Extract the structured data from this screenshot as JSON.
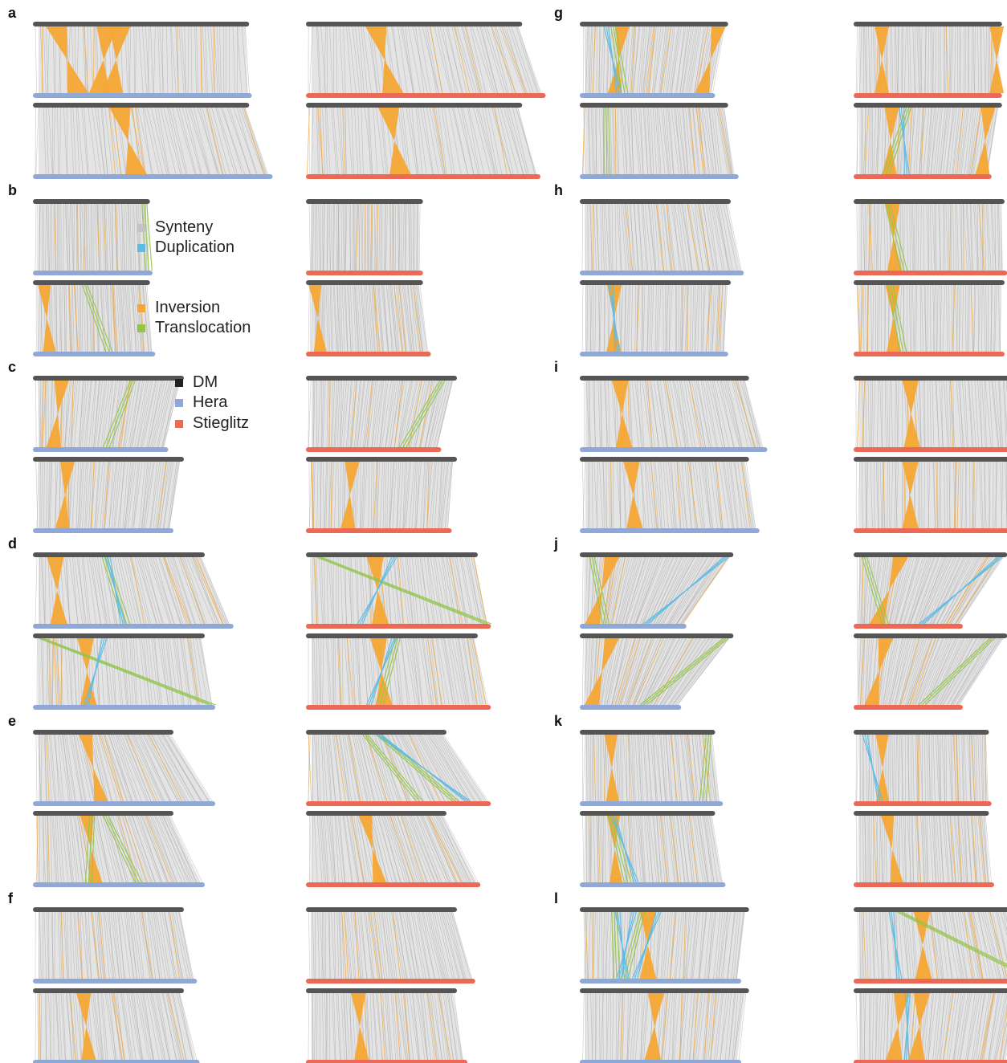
{
  "colors": {
    "reference": "#555555",
    "hera": "#8fa8d6",
    "stieglitz": "#ec6a55",
    "synteny": "#c3c3c3",
    "duplication": "#5bbbe6",
    "inversion": "#f6a635",
    "translocation": "#93c54b"
  },
  "legend_variants": [
    {
      "label": "Synteny",
      "color": "#c3c3c3"
    },
    {
      "label": "Duplication",
      "color": "#5bbbe6"
    },
    {
      "label": "Inversion",
      "color": "#f6a635"
    },
    {
      "label": "Translocation",
      "color": "#93c54b"
    }
  ],
  "legend_genomes": [
    {
      "label": "DM",
      "color": "#222222"
    },
    {
      "label": "Hera",
      "color": "#8fa8d6"
    },
    {
      "label": "Stieglitz",
      "color": "#ec6a55"
    }
  ],
  "panels": [
    {
      "label": "a",
      "plots": [
        {
          "genome": "hera",
          "topLen": 0.81,
          "botLen": 0.82,
          "inv": [
            [
              0.1,
              0.2
            ],
            [
              0.34,
              0.3
            ],
            [
              0.4,
              0.36
            ]
          ],
          "tl": [],
          "dup": []
        },
        {
          "genome": "stieglitz",
          "topLen": 0.81,
          "botLen": 0.9,
          "inv": [
            [
              0.32,
              0.36
            ]
          ],
          "tl": [],
          "dup": []
        },
        {
          "genome": "hera",
          "topLen": 0.81,
          "botLen": 0.9,
          "inv": [
            [
              0.4,
              0.43
            ]
          ],
          "tl": [],
          "dup": []
        },
        {
          "genome": "stieglitz",
          "topLen": 0.81,
          "botLen": 0.88,
          "inv": [
            [
              0.38,
              0.4
            ]
          ],
          "tl": [],
          "dup": []
        }
      ]
    },
    {
      "label": "b",
      "plots": [
        {
          "genome": "hera",
          "topLen": 0.43,
          "botLen": 0.44,
          "inv": [],
          "tl": [
            [
              0.95,
              0.96
            ]
          ],
          "dup": []
        },
        {
          "genome": "stieglitz",
          "topLen": 0.43,
          "botLen": 0.43,
          "inv": [],
          "tl": [],
          "dup": []
        },
        {
          "genome": "hera",
          "topLen": 0.43,
          "botLen": 0.45,
          "inv": [
            [
              0.08,
              0.12
            ]
          ],
          "tl": [
            [
              0.42,
              0.6
            ]
          ],
          "dup": []
        },
        {
          "genome": "stieglitz",
          "topLen": 0.43,
          "botLen": 0.46,
          "inv": [
            [
              0.06,
              0.1
            ]
          ],
          "tl": [],
          "dup": []
        }
      ]
    },
    {
      "label": "c",
      "plots": [
        {
          "genome": "hera",
          "topLen": 0.56,
          "botLen": 0.5,
          "inv": [
            [
              0.18,
              0.14
            ]
          ],
          "tl": [
            [
              0.65,
              0.52
            ]
          ],
          "dup": []
        },
        {
          "genome": "stieglitz",
          "topLen": 0.56,
          "botLen": 0.5,
          "inv": [],
          "tl": [
            [
              0.9,
              0.7
            ]
          ],
          "dup": []
        },
        {
          "genome": "hera",
          "topLen": 0.56,
          "botLen": 0.52,
          "inv": [
            [
              0.22,
              0.2
            ]
          ],
          "tl": [],
          "dup": []
        },
        {
          "genome": "stieglitz",
          "topLen": 0.56,
          "botLen": 0.54,
          "inv": [
            [
              0.3,
              0.28
            ]
          ],
          "tl": [],
          "dup": []
        }
      ]
    },
    {
      "label": "d",
      "plots": [
        {
          "genome": "hera",
          "topLen": 0.64,
          "botLen": 0.75,
          "inv": [
            [
              0.12,
              0.12
            ]
          ],
          "tl": [
            [
              0.4,
              0.45
            ]
          ],
          "dup": [
            [
              0.42,
              0.46
            ]
          ]
        },
        {
          "genome": "stieglitz",
          "topLen": 0.64,
          "botLen": 0.69,
          "inv": [
            [
              0.4,
              0.4
            ]
          ],
          "tl": [
            [
              0.05,
              0.98
            ]
          ],
          "dup": [
            [
              0.5,
              0.3
            ]
          ]
        },
        {
          "genome": "hera",
          "topLen": 0.64,
          "botLen": 0.68,
          "inv": [
            [
              0.3,
              0.3
            ]
          ],
          "tl": [
            [
              0.02,
              0.98
            ]
          ],
          "dup": [
            [
              0.4,
              0.3
            ]
          ]
        },
        {
          "genome": "stieglitz",
          "topLen": 0.64,
          "botLen": 0.69,
          "inv": [
            [
              0.42,
              0.42
            ]
          ],
          "tl": [
            [
              0.52,
              0.38
            ]
          ],
          "dup": [
            [
              0.5,
              0.35
            ]
          ]
        }
      ]
    },
    {
      "label": "e",
      "plots": [
        {
          "genome": "hera",
          "topLen": 0.52,
          "botLen": 0.68,
          "inv": [
            [
              0.37,
              0.37
            ]
          ],
          "tl": [],
          "dup": []
        },
        {
          "genome": "stieglitz",
          "topLen": 0.52,
          "botLen": 0.69,
          "inv": [],
          "tl": [
            [
              0.4,
              0.6
            ],
            [
              0.5,
              0.8
            ]
          ],
          "dup": [
            [
              0.5,
              0.9
            ]
          ]
        },
        {
          "genome": "hera",
          "topLen": 0.52,
          "botLen": 0.64,
          "inv": [
            [
              0.38,
              0.36
            ]
          ],
          "tl": [
            [
              0.4,
              0.3
            ],
            [
              0.5,
              0.6
            ]
          ],
          "dup": []
        },
        {
          "genome": "stieglitz",
          "topLen": 0.52,
          "botLen": 0.65,
          "inv": [
            [
              0.42,
              0.42
            ]
          ],
          "tl": [],
          "dup": []
        }
      ]
    },
    {
      "label": "f",
      "plots": [
        {
          "genome": "hera",
          "topLen": 0.56,
          "botLen": 0.61,
          "inv": [],
          "tl": [],
          "dup": []
        },
        {
          "genome": "stieglitz",
          "topLen": 0.56,
          "botLen": 0.63,
          "inv": [],
          "tl": [],
          "dup": []
        },
        {
          "genome": "hera",
          "topLen": 0.56,
          "botLen": 0.62,
          "inv": [
            [
              0.33,
              0.33
            ]
          ],
          "tl": [],
          "dup": []
        },
        {
          "genome": "stieglitz",
          "topLen": 0.56,
          "botLen": 0.6,
          "inv": [
            [
              0.34,
              0.34
            ]
          ],
          "tl": [],
          "dup": []
        }
      ]
    },
    {
      "label": "g",
      "plots": [
        {
          "genome": "hera",
          "topLen": 0.55,
          "botLen": 0.5,
          "inv": [
            [
              0.28,
              0.25
            ],
            [
              0.95,
              0.92
            ]
          ],
          "tl": [
            [
              0.2,
              0.3
            ]
          ],
          "dup": [
            [
              0.15,
              0.3
            ]
          ]
        },
        {
          "genome": "stieglitz",
          "topLen": 0.55,
          "botLen": 0.55,
          "inv": [
            [
              0.18,
              0.18
            ],
            [
              0.98,
              0.98
            ]
          ],
          "tl": [],
          "dup": []
        },
        {
          "genome": "hera",
          "topLen": 0.55,
          "botLen": 0.59,
          "inv": [],
          "tl": [
            [
              0.15,
              0.14
            ]
          ],
          "dup": []
        },
        {
          "genome": "stieglitz",
          "topLen": 0.55,
          "botLen": 0.51,
          "inv": [
            [
              0.25,
              0.25
            ],
            [
              0.92,
              0.95
            ]
          ],
          "tl": [
            [
              0.35,
              0.2
            ]
          ],
          "dup": [
            [
              0.3,
              0.4
            ]
          ]
        }
      ]
    },
    {
      "label": "h",
      "plots": [
        {
          "genome": "hera",
          "topLen": 0.56,
          "botLen": 0.61,
          "inv": [],
          "tl": [],
          "dup": []
        },
        {
          "genome": "stieglitz",
          "topLen": 0.56,
          "botLen": 0.57,
          "inv": [
            [
              0.25,
              0.26
            ]
          ],
          "tl": [
            [
              0.2,
              0.3
            ]
          ],
          "dup": []
        },
        {
          "genome": "hera",
          "topLen": 0.56,
          "botLen": 0.55,
          "inv": [
            [
              0.22,
              0.22
            ]
          ],
          "tl": [],
          "dup": [
            [
              0.18,
              0.26
            ]
          ]
        },
        {
          "genome": "stieglitz",
          "topLen": 0.56,
          "botLen": 0.56,
          "inv": [
            [
              0.25,
              0.26
            ]
          ],
          "tl": [
            [
              0.22,
              0.3
            ]
          ],
          "dup": []
        }
      ]
    },
    {
      "label": "i",
      "plots": [
        {
          "genome": "hera",
          "topLen": 0.63,
          "botLen": 0.7,
          "inv": [
            [
              0.23,
              0.23
            ]
          ],
          "tl": [],
          "dup": []
        },
        {
          "genome": "stieglitz",
          "topLen": 0.63,
          "botLen": 0.65,
          "inv": [
            [
              0.33,
              0.33
            ]
          ],
          "tl": [],
          "dup": []
        },
        {
          "genome": "hera",
          "topLen": 0.63,
          "botLen": 0.67,
          "inv": [
            [
              0.3,
              0.3
            ]
          ],
          "tl": [],
          "dup": []
        },
        {
          "genome": "stieglitz",
          "topLen": 0.63,
          "botLen": 0.63,
          "inv": [
            [
              0.33,
              0.33
            ]
          ],
          "tl": [],
          "dup": []
        }
      ]
    },
    {
      "label": "j",
      "plots": [
        {
          "genome": "hera",
          "topLen": 0.57,
          "botLen": 0.39,
          "inv": [
            [
              0.2,
              0.1
            ]
          ],
          "tl": [
            [
              0.05,
              0.2
            ]
          ],
          "dup": [
            [
              0.95,
              0.65
            ]
          ]
        },
        {
          "genome": "stieglitz",
          "topLen": 0.57,
          "botLen": 0.4,
          "inv": [
            [
              0.3,
              0.2
            ]
          ],
          "tl": [
            [
              0.04,
              0.25
            ]
          ],
          "dup": [
            [
              0.95,
              0.65
            ]
          ]
        },
        {
          "genome": "hera",
          "topLen": 0.57,
          "botLen": 0.37,
          "inv": [
            [
              0.2,
              0.1
            ]
          ],
          "tl": [
            [
              0.95,
              0.6
            ]
          ],
          "dup": []
        },
        {
          "genome": "stieglitz",
          "topLen": 0.57,
          "botLen": 0.4,
          "inv": [
            [
              0.2,
              0.15
            ]
          ],
          "tl": [
            [
              0.9,
              0.6
            ]
          ],
          "dup": []
        }
      ]
    },
    {
      "label": "k",
      "plots": [
        {
          "genome": "hera",
          "topLen": 0.5,
          "botLen": 0.53,
          "inv": [
            [
              0.22,
              0.22
            ]
          ],
          "tl": [
            [
              0.95,
              0.85
            ]
          ],
          "dup": []
        },
        {
          "genome": "stieglitz",
          "topLen": 0.5,
          "botLen": 0.51,
          "inv": [
            [
              0.2,
              0.2
            ]
          ],
          "tl": [],
          "dup": [
            [
              0.05,
              0.2
            ]
          ]
        },
        {
          "genome": "hera",
          "topLen": 0.5,
          "botLen": 0.54,
          "inv": [
            [
              0.24,
              0.24
            ]
          ],
          "tl": [
            [
              0.2,
              0.3
            ]
          ],
          "dup": [
            [
              0.22,
              0.4
            ]
          ]
        },
        {
          "genome": "stieglitz",
          "topLen": 0.5,
          "botLen": 0.52,
          "inv": [
            [
              0.24,
              0.3
            ]
          ],
          "tl": [],
          "dup": []
        }
      ]
    },
    {
      "label": "l",
      "plots": [
        {
          "genome": "hera",
          "topLen": 0.63,
          "botLen": 0.6,
          "inv": [
            [
              0.4,
              0.42
            ]
          ],
          "tl": [
            [
              0.18,
              0.2
            ],
            [
              0.35,
              0.25
            ]
          ],
          "dup": [
            [
              0.2,
              0.3
            ],
            [
              0.3,
              0.25
            ],
            [
              0.45,
              0.35
            ]
          ]
        },
        {
          "genome": "stieglitz",
          "topLen": 0.63,
          "botLen": 0.7,
          "inv": [
            [
              0.4,
              0.37
            ]
          ],
          "tl": [
            [
              0.25,
              0.95
            ]
          ],
          "dup": [
            [
              0.2,
              0.25
            ]
          ]
        },
        {
          "genome": "hera",
          "topLen": 0.63,
          "botLen": 0.6,
          "inv": [
            [
              0.45,
              0.45
            ]
          ],
          "tl": [],
          "dup": []
        },
        {
          "genome": "stieglitz",
          "topLen": 0.63,
          "botLen": 0.58,
          "inv": [
            [
              0.28,
              0.25
            ],
            [
              0.4,
              0.4
            ]
          ],
          "tl": [],
          "dup": [
            [
              0.3,
              0.35
            ]
          ]
        }
      ]
    }
  ]
}
